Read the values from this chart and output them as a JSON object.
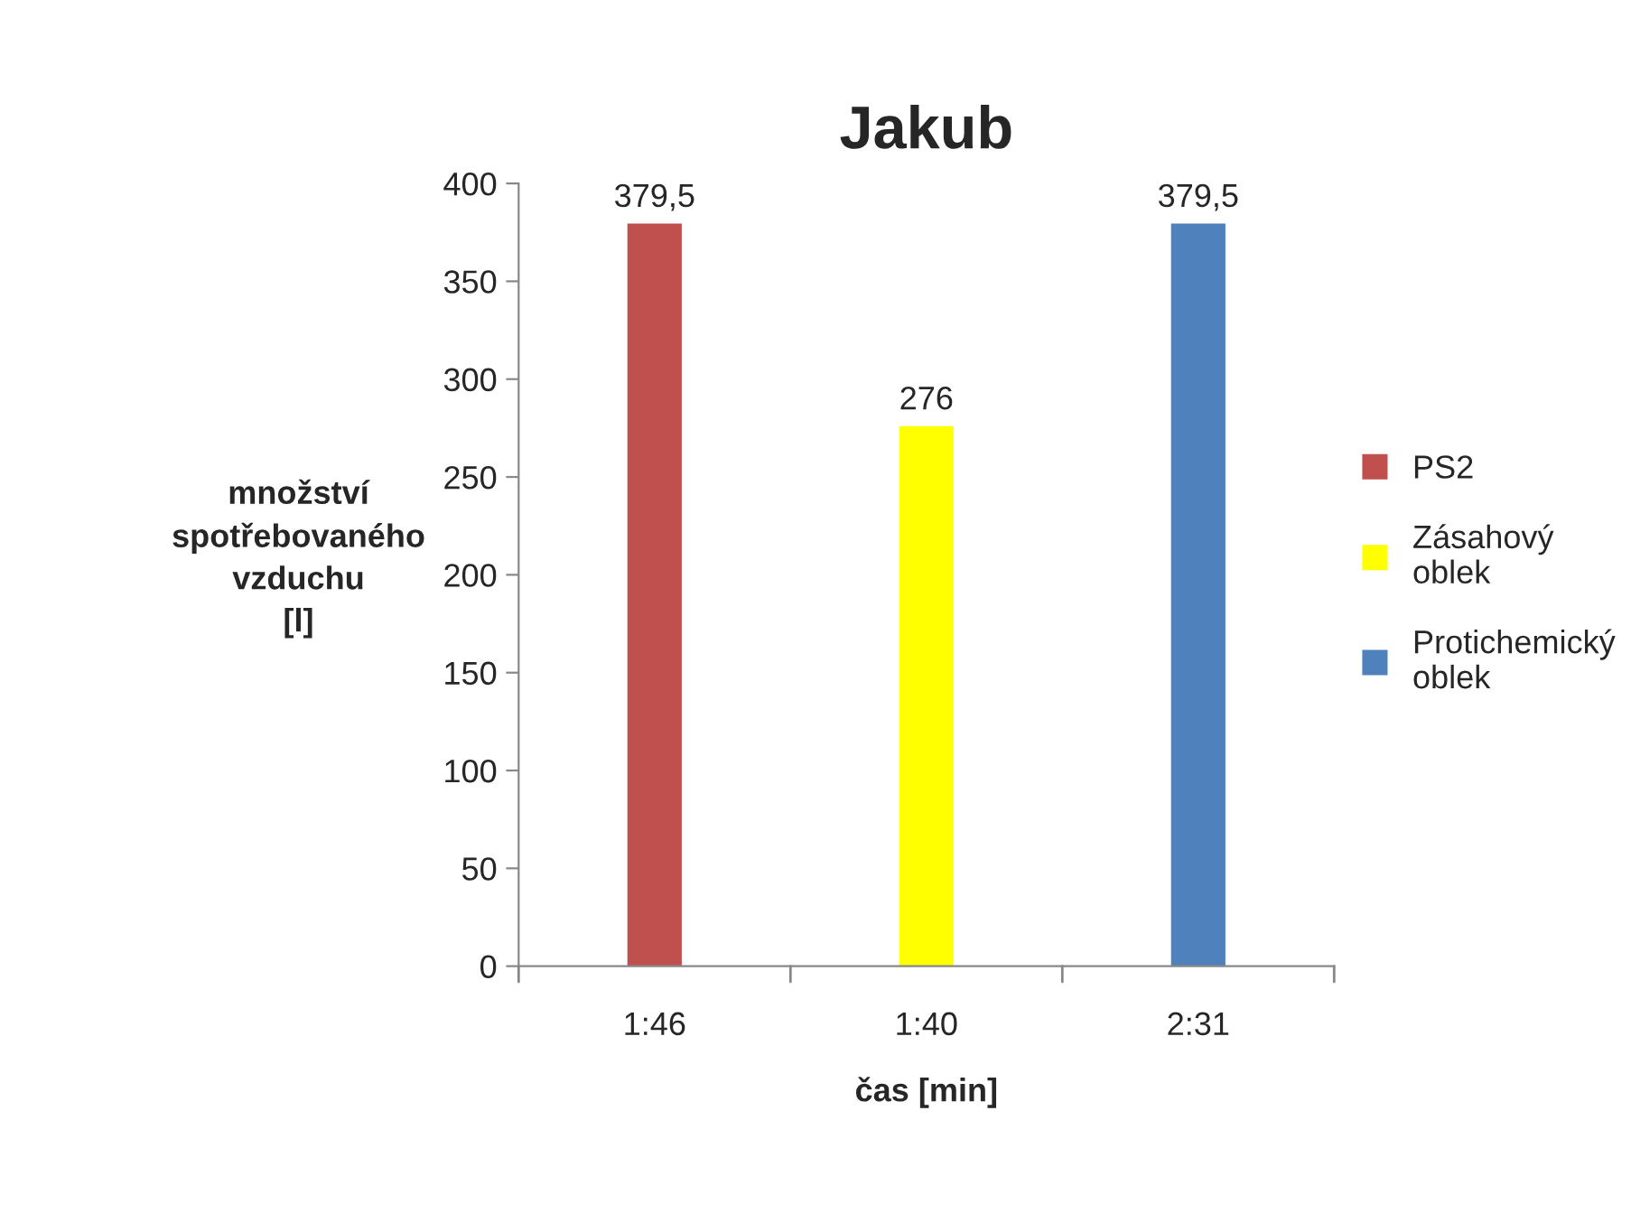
{
  "chart_data": {
    "type": "bar",
    "title": "Jakub",
    "xlabel": "čas [min]",
    "ylabel": "množství spotřebovaného vzduchu [l]",
    "categories": [
      "1:46",
      "1:40",
      "2:31"
    ],
    "series": [
      {
        "name": "PS2",
        "color": "#c0504d",
        "values": [
          379.5,
          null,
          null
        ],
        "value_labels": [
          "379,5",
          null,
          null
        ]
      },
      {
        "name": "Zásahový oblek",
        "color": "#ffff00",
        "values": [
          null,
          276,
          null
        ],
        "value_labels": [
          null,
          "276",
          null
        ]
      },
      {
        "name": "Protichemický oblek",
        "color": "#4f81bd",
        "values": [
          null,
          null,
          379.5
        ],
        "value_labels": [
          null,
          null,
          "379,5"
        ]
      }
    ],
    "ylim": [
      0,
      400
    ],
    "yticks": [
      0,
      50,
      100,
      150,
      200,
      250,
      300,
      350,
      400
    ],
    "grid": false,
    "legend": "right"
  }
}
